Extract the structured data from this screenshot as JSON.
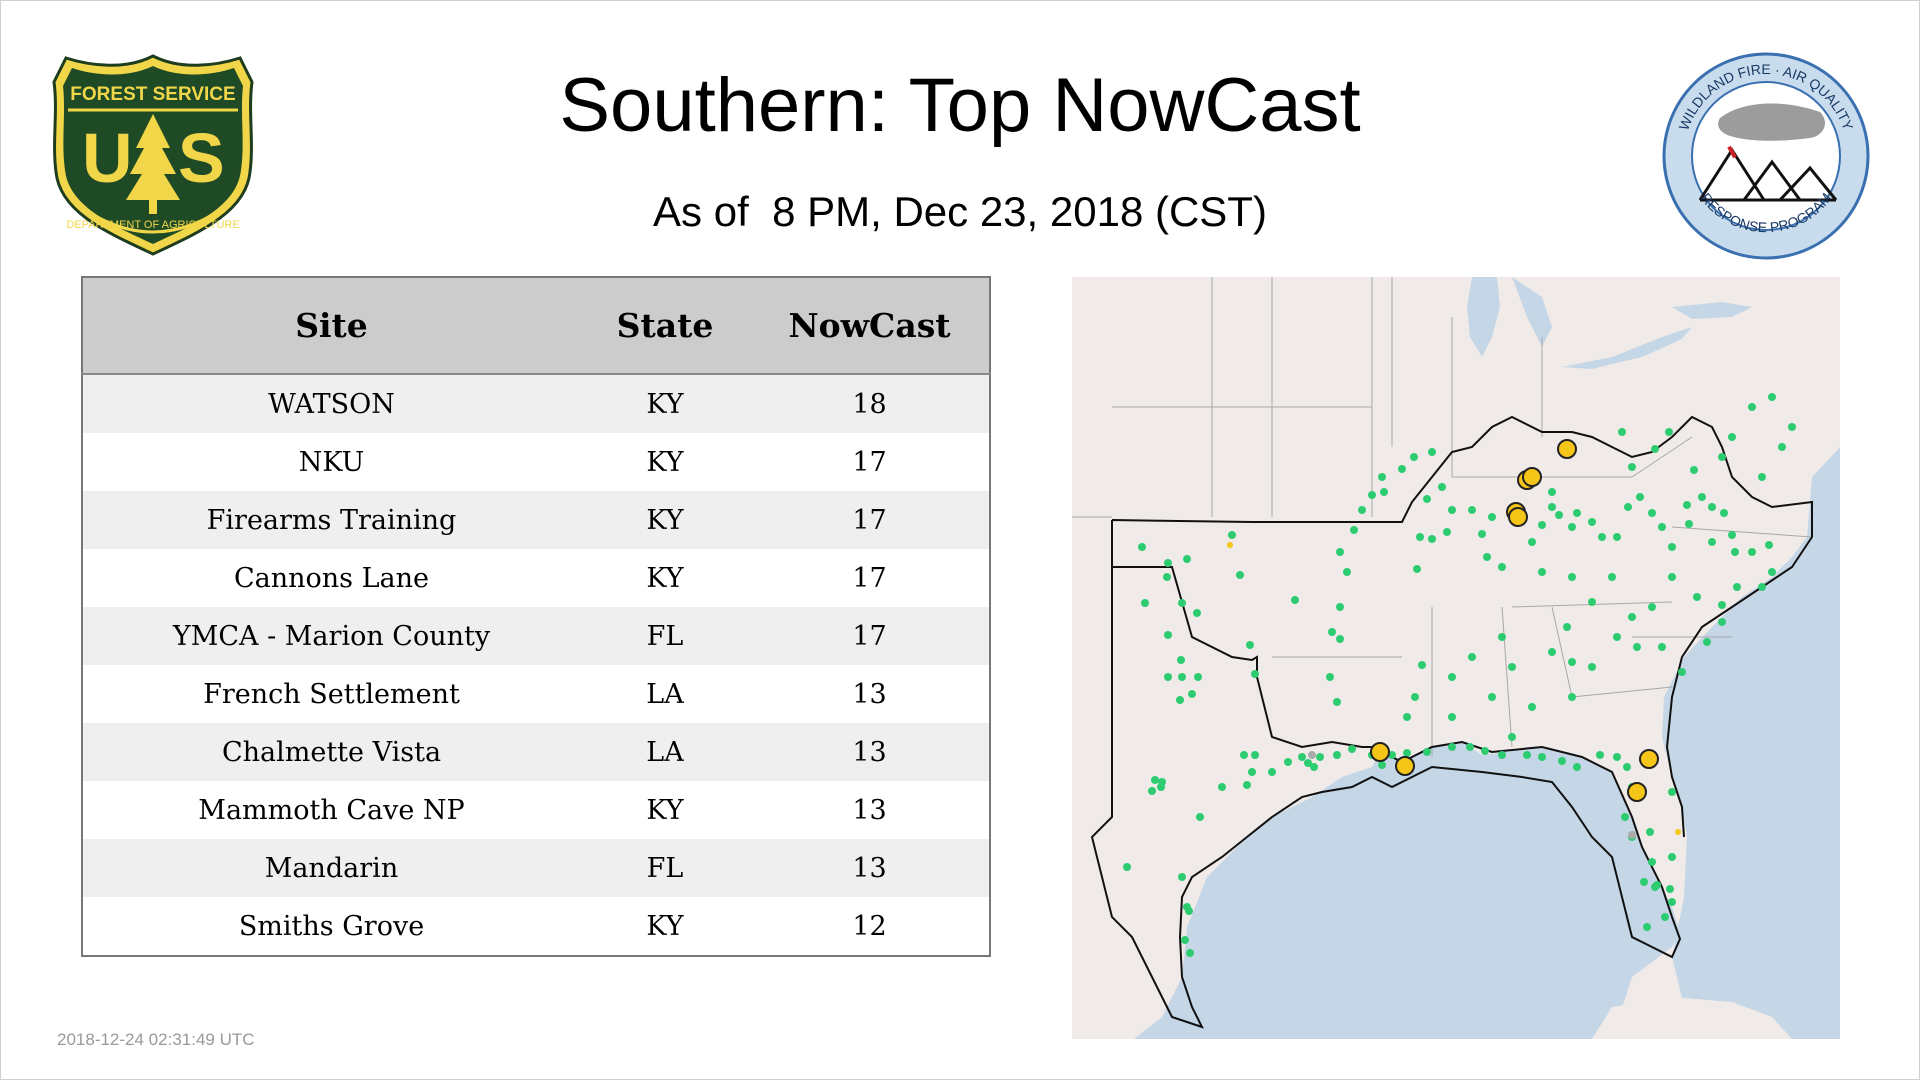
{
  "title": "Southern: Top NowCast",
  "subtitle": "As of  8 PM, Dec 23, 2018 (CST)",
  "logo_left": {
    "top_text": "FOREST SERVICE",
    "letter_u": "U",
    "letter_s": "S",
    "bottom_text": "DEPARTMENT OF AGRICULTURE"
  },
  "logo_right": {
    "top_text": "WILDLAND FIRE · AIR QUALITY",
    "bottom_text": "RESPONSE PROGRAM"
  },
  "table": {
    "headers": {
      "site": "Site",
      "state": "State",
      "nowcast": "NowCast"
    },
    "rows": [
      {
        "site": "WATSON",
        "state": "KY",
        "nowcast": "18"
      },
      {
        "site": "NKU",
        "state": "KY",
        "nowcast": "17"
      },
      {
        "site": "Firearms Training",
        "state": "KY",
        "nowcast": "17"
      },
      {
        "site": "Cannons Lane",
        "state": "KY",
        "nowcast": "17"
      },
      {
        "site": "YMCA - Marion County",
        "state": "FL",
        "nowcast": "17"
      },
      {
        "site": "French Settlement",
        "state": "LA",
        "nowcast": "13"
      },
      {
        "site": "Chalmette Vista",
        "state": "LA",
        "nowcast": "13"
      },
      {
        "site": "Mammoth Cave NP",
        "state": "KY",
        "nowcast": "13"
      },
      {
        "site": "Mandarin",
        "state": "FL",
        "nowcast": "13"
      },
      {
        "site": "Smiths Grove",
        "state": "KY",
        "nowcast": "12"
      }
    ]
  },
  "map": {
    "colors": {
      "land": "#f0ebe8",
      "water": "#c5d6e6",
      "good": "#2ecc71",
      "moderate": "#f5c518",
      "no_data": "#aaaaaa"
    }
  },
  "timestamp": "2018-12-24 02:31:49 UTC"
}
